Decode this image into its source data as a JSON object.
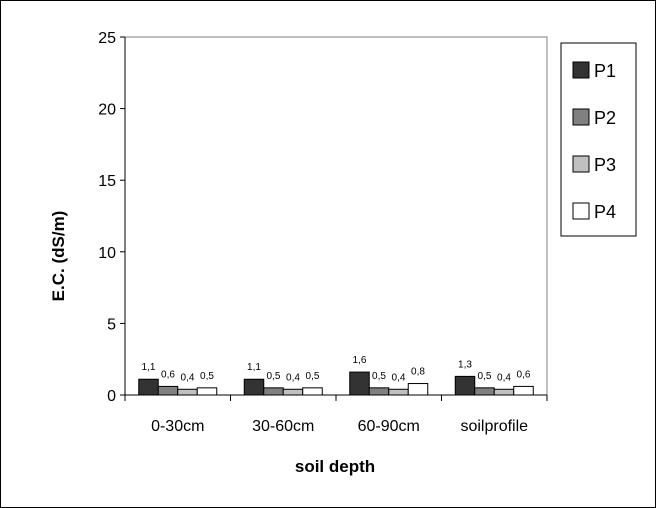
{
  "chart_data": {
    "type": "bar",
    "title": "",
    "xlabel": "soil depth",
    "ylabel": "E.C. (dS/m)",
    "ylim": [
      0,
      25
    ],
    "yticks": [
      "0",
      "5",
      "10",
      "15",
      "20",
      "25"
    ],
    "categories": [
      "0-30cm",
      "30-60cm",
      "60-90cm",
      "soilprofile"
    ],
    "series": [
      {
        "name": "P1",
        "color": "#333333",
        "values": [
          1.1,
          1.1,
          1.6,
          1.3
        ],
        "labels": [
          "1,1",
          "1,1",
          "1,6",
          "1,3"
        ]
      },
      {
        "name": "P2",
        "color": "#808080",
        "values": [
          0.6,
          0.5,
          0.5,
          0.5
        ],
        "labels": [
          "0,6",
          "0,5",
          "0,5",
          "0,5"
        ]
      },
      {
        "name": "P3",
        "color": "#c0c0c0",
        "values": [
          0.4,
          0.4,
          0.4,
          0.4
        ],
        "labels": [
          "0,4",
          "0,4",
          "0,4",
          "0,4"
        ]
      },
      {
        "name": "P4",
        "color": "#ffffff",
        "values": [
          0.5,
          0.5,
          0.8,
          0.6
        ],
        "labels": [
          "0,5",
          "0,5",
          "0,8",
          "0,6"
        ]
      }
    ],
    "grid": false,
    "legend": "right"
  }
}
